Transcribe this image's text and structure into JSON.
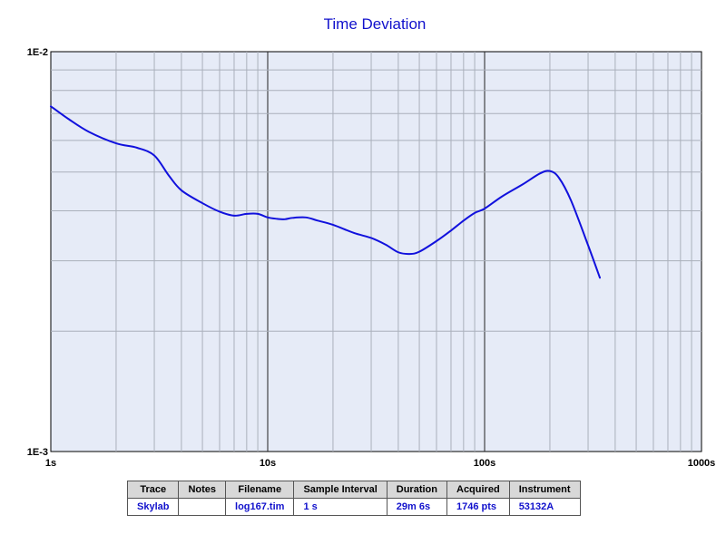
{
  "chart_data": {
    "type": "line",
    "title": "Time Deviation",
    "xscale": "log",
    "yscale": "log",
    "xlim": [
      1,
      1000
    ],
    "ylim": [
      0.001,
      0.01
    ],
    "x_tick_labels": [
      "1s",
      "10s",
      "100s",
      "1000s"
    ],
    "y_tick_labels": [
      "1E-2",
      "1E-3"
    ],
    "grid": true,
    "series": [
      {
        "name": "Skylab",
        "color": "#1111dd",
        "x": [
          1,
          1.2,
          1.5,
          2,
          2.5,
          3,
          3.5,
          4,
          5,
          6,
          7,
          8,
          9,
          10,
          11,
          12,
          13,
          15,
          17,
          20,
          25,
          30,
          35,
          40,
          45,
          50,
          60,
          70,
          80,
          90,
          100,
          120,
          150,
          180,
          200,
          220,
          250,
          300,
          340
        ],
        "y": [
          0.0073,
          0.0068,
          0.0063,
          0.0059,
          0.00575,
          0.0055,
          0.0049,
          0.0045,
          0.00418,
          0.00398,
          0.00389,
          0.00393,
          0.00393,
          0.00385,
          0.00382,
          0.00381,
          0.00384,
          0.00385,
          0.00378,
          0.00369,
          0.00352,
          0.00342,
          0.00329,
          0.00315,
          0.00312,
          0.00316,
          0.00336,
          0.00357,
          0.00378,
          0.00395,
          0.00405,
          0.00434,
          0.00466,
          0.00496,
          0.00503,
          0.00484,
          0.00425,
          0.00328,
          0.00272
        ]
      }
    ]
  },
  "legend_table": {
    "headers": [
      "Trace",
      "Notes",
      "Filename",
      "Sample Interval",
      "Duration",
      "Acquired",
      "Instrument"
    ],
    "row": [
      "Skylab",
      "",
      "log167.tim",
      "1 s",
      "29m 6s",
      "1746 pts",
      "53132A"
    ]
  }
}
